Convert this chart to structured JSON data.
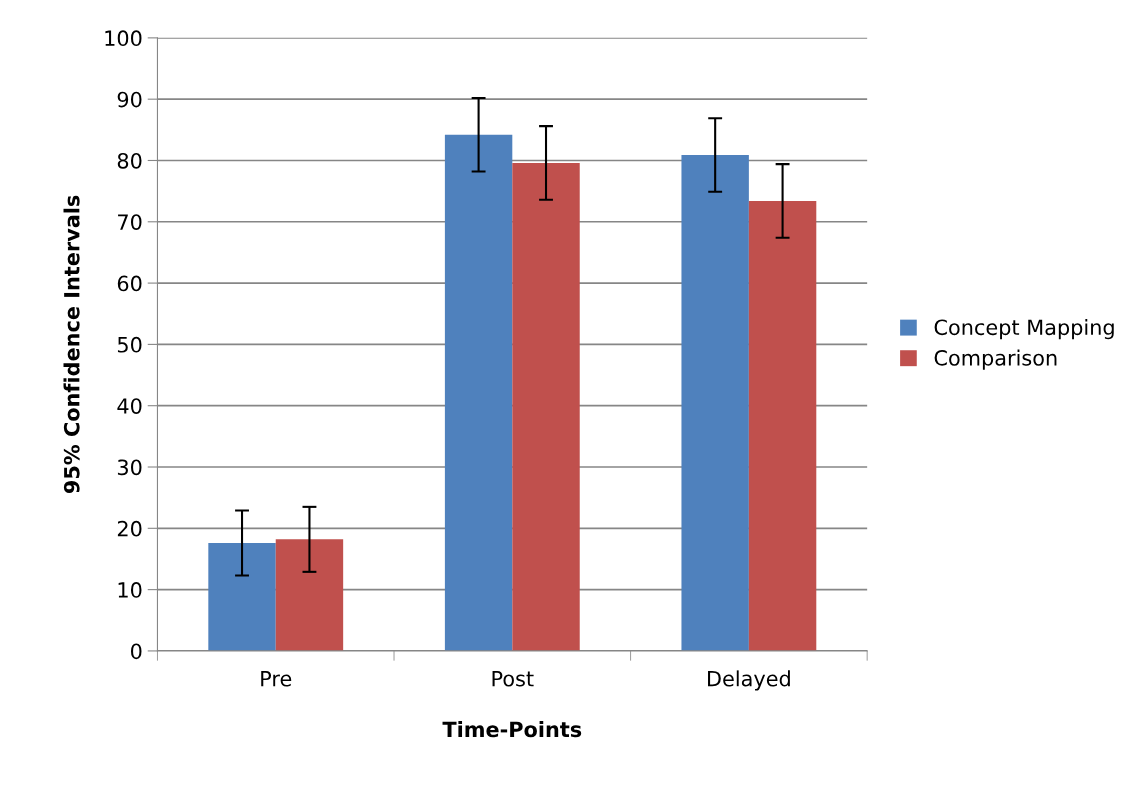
{
  "chart_data": {
    "type": "bar",
    "xlabel": "Time-Points",
    "ylabel": "95% Confidence Intervals",
    "categories": [
      "Pre",
      "Post",
      "Delayed"
    ],
    "series": [
      {
        "name": "Concept Mapping",
        "color": "#4f81bd",
        "values": [
          17.6,
          84.2,
          80.9
        ],
        "errors": [
          5.3,
          6.0,
          6.0
        ]
      },
      {
        "name": "Comparison",
        "color": "#c0504d",
        "values": [
          18.2,
          79.6,
          73.4
        ],
        "errors": [
          5.3,
          6.0,
          6.0
        ]
      }
    ],
    "ylim": [
      0,
      100
    ],
    "yticks": [
      0,
      10,
      20,
      30,
      40,
      50,
      60,
      70,
      80,
      90,
      100
    ],
    "grid": "y",
    "legend": "right"
  }
}
